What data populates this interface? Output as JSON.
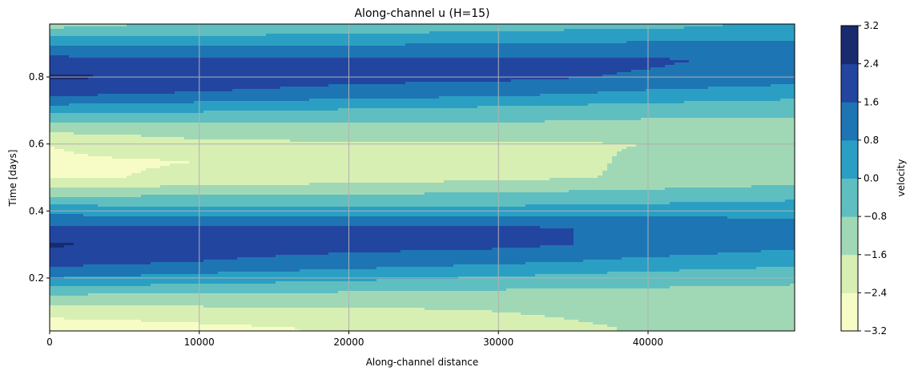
{
  "chart_data": {
    "type": "heatmap",
    "title": "Along-channel u (H=15)",
    "xlabel": "Along-channel distance",
    "ylabel": "Time [days]",
    "xlim": [
      0,
      49800
    ],
    "ylim": [
      0.042,
      0.958
    ],
    "xticks": [
      0,
      10000,
      20000,
      30000,
      40000
    ],
    "yticks": [
      0.2,
      0.4,
      0.6,
      0.8
    ],
    "xtick_labels": [
      "0",
      "10000",
      "20000",
      "30000",
      "40000"
    ],
    "ytick_labels": [
      "0.2",
      "0.4",
      "0.6",
      "0.8"
    ],
    "grid": true,
    "colorbar": {
      "label": "velocity",
      "levels": [
        -3.2,
        -2.4,
        -1.6,
        -0.8,
        0.0,
        0.8,
        1.6,
        2.4,
        3.2
      ],
      "tick_labels": [
        "−3.2",
        "−2.4",
        "−1.6",
        "−0.8",
        "0.0",
        "0.8",
        "1.6",
        "2.4",
        "3.2"
      ],
      "colors": [
        "#f7fcc6",
        "#d8efb3",
        "#a0d8b6",
        "#5fbec0",
        "#2b9fc3",
        "#1e75b3",
        "#2245a0",
        "#192a6f"
      ],
      "colormap": "YlGnBu"
    },
    "contour_field": {
      "description_of_axes": "rows = time in days, columns = along-channel distance",
      "x": [
        0,
        10000,
        20000,
        30000,
        40000,
        49800
      ],
      "t": [
        0.05,
        0.1,
        0.15,
        0.2,
        0.25,
        0.3,
        0.35,
        0.4,
        0.45,
        0.5,
        0.55,
        0.6,
        0.65,
        0.7,
        0.75,
        0.8,
        0.85,
        0.9,
        0.95
      ],
      "u": [
        [
          -3.0,
          -2.6,
          -2.3,
          -2.0,
          -1.5,
          -1.3
        ],
        [
          -2.0,
          -1.9,
          -1.8,
          -1.6,
          -1.3,
          -1.2
        ],
        [
          -0.8,
          -0.9,
          -1.0,
          -1.1,
          -1.1,
          -1.1
        ],
        [
          0.8,
          0.5,
          0.2,
          -0.1,
          -0.4,
          -0.6
        ],
        [
          2.0,
          1.6,
          1.3,
          1.0,
          0.6,
          0.3
        ],
        [
          2.5,
          2.0,
          1.9,
          1.8,
          1.4,
          1.0
        ],
        [
          1.8,
          1.7,
          1.7,
          1.7,
          1.5,
          1.2
        ],
        [
          0.5,
          0.4,
          0.3,
          0.3,
          0.4,
          0.5
        ],
        [
          -1.0,
          -0.9,
          -0.8,
          -0.7,
          -0.5,
          -0.3
        ],
        [
          -2.5,
          -2.3,
          -2.0,
          -1.8,
          -1.5,
          -1.2
        ],
        [
          -2.5,
          -2.4,
          -2.0,
          -1.9,
          -1.5,
          -1.2
        ],
        [
          -2.4,
          -1.8,
          -1.7,
          -1.7,
          -1.6,
          -1.4
        ],
        [
          -1.2,
          -1.1,
          -1.0,
          -1.0,
          -1.1,
          -1.0
        ],
        [
          0.3,
          0.1,
          -0.1,
          -0.3,
          -0.5,
          -0.6
        ],
        [
          1.8,
          1.5,
          1.2,
          1.0,
          0.6,
          0.3
        ],
        [
          2.5,
          2.3,
          1.9,
          1.8,
          1.5,
          1.2
        ],
        [
          1.9,
          1.8,
          1.8,
          1.8,
          1.7,
          1.4
        ],
        [
          0.6,
          0.6,
          0.7,
          0.8,
          0.9,
          0.9
        ],
        [
          -0.9,
          -0.7,
          -0.5,
          -0.3,
          -0.1,
          0.1
        ]
      ]
    }
  }
}
